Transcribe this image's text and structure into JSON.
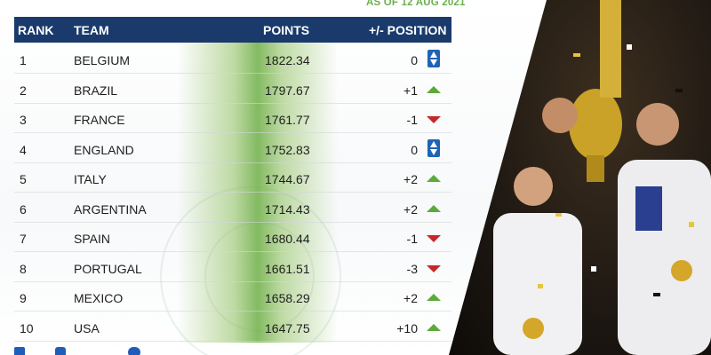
{
  "date_stamp": "AS OF 12 AUG 2021",
  "header": {
    "rank": "RANK",
    "team": "TEAM",
    "points": "POINTS",
    "position": "+/- POSITION"
  },
  "rows": [
    {
      "rank": "1",
      "team": "BELGIUM",
      "points": "1822.34",
      "change": "0",
      "trend": "same"
    },
    {
      "rank": "2",
      "team": "BRAZIL",
      "points": "1797.67",
      "change": "+1",
      "trend": "up"
    },
    {
      "rank": "3",
      "team": "FRANCE",
      "points": "1761.77",
      "change": "-1",
      "trend": "down"
    },
    {
      "rank": "4",
      "team": "ENGLAND",
      "points": "1752.83",
      "change": "0",
      "trend": "same"
    },
    {
      "rank": "5",
      "team": "ITALY",
      "points": "1744.67",
      "change": "+2",
      "trend": "up"
    },
    {
      "rank": "6",
      "team": "ARGENTINA",
      "points": "1714.43",
      "change": "+2",
      "trend": "up"
    },
    {
      "rank": "7",
      "team": "SPAIN",
      "points": "1680.44",
      "change": "-1",
      "trend": "down"
    },
    {
      "rank": "8",
      "team": "PORTUGAL",
      "points": "1661.51",
      "change": "-3",
      "trend": "down"
    },
    {
      "rank": "9",
      "team": "MEXICO",
      "points": "1658.29",
      "change": "+2",
      "trend": "up"
    },
    {
      "rank": "10",
      "team": "USA",
      "points": "1647.75",
      "change": "+10",
      "trend": "up"
    }
  ],
  "colors": {
    "header_bg": "#1a3a6c",
    "up": "#5caa3c",
    "down": "#c62828",
    "same": "#1f63b5",
    "date_stamp": "#6ab04c"
  },
  "icons": {
    "up": "triangle-up-icon",
    "down": "triangle-down-icon",
    "same": "double-arrow-icon"
  },
  "footer_icons": [
    "facebook-icon",
    "instagram-icon",
    "twitter-icon"
  ]
}
